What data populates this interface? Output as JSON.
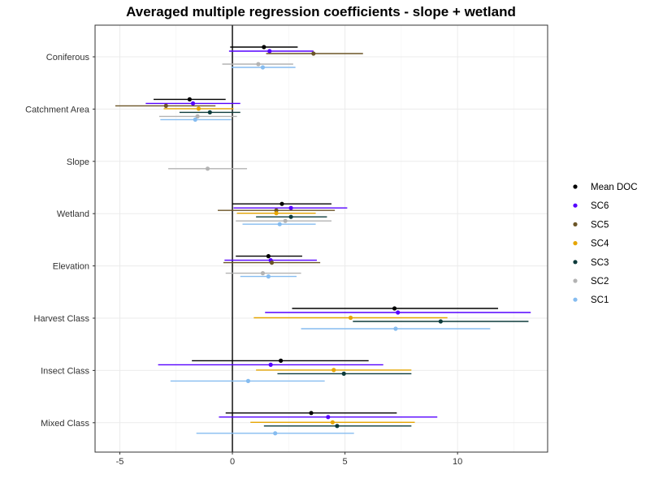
{
  "chart_data": {
    "type": "forest",
    "title": "Averaged multiple regression coefficients - slope + wetland",
    "xlabel": "",
    "ylabel": "",
    "xlim": [
      -6.1,
      14.0
    ],
    "x_ticks": [
      -5,
      0,
      5,
      10
    ],
    "x_tick_labels": [
      "-5",
      "0",
      "5",
      "10"
    ],
    "grid": true,
    "legend_position": "right",
    "categories": [
      "Coniferous",
      "Catchment Area",
      "Slope",
      "Wetland",
      "Elevation",
      "Harvest Class",
      "Insect Class",
      "Mixed Class"
    ],
    "series": [
      {
        "name": "Mean DOC",
        "color": "#000000",
        "points": [
          {
            "category": "Coniferous",
            "est": 1.4,
            "lo": -0.1,
            "hi": 2.9
          },
          {
            "category": "Catchment Area",
            "est": -1.9,
            "lo": -3.5,
            "hi": -0.3
          },
          {
            "category": "Wetland",
            "est": 2.2,
            "lo": 0.0,
            "hi": 4.4
          },
          {
            "category": "Elevation",
            "est": 1.6,
            "lo": 0.15,
            "hi": 3.1
          },
          {
            "category": "Harvest Class",
            "est": 7.2,
            "lo": 2.65,
            "hi": 11.8
          },
          {
            "category": "Insect Class",
            "est": 2.15,
            "lo": -1.8,
            "hi": 6.05
          },
          {
            "category": "Mixed Class",
            "est": 3.5,
            "lo": -0.3,
            "hi": 7.3
          }
        ]
      },
      {
        "name": "SC6",
        "color": "#5500ff",
        "points": [
          {
            "category": "Coniferous",
            "est": 1.65,
            "lo": -0.15,
            "hi": 3.6
          },
          {
            "category": "Catchment Area",
            "est": -1.75,
            "lo": -3.85,
            "hi": 0.35
          },
          {
            "category": "Wetland",
            "est": 2.6,
            "lo": 0.05,
            "hi": 5.1
          },
          {
            "category": "Elevation",
            "est": 1.7,
            "lo": -0.35,
            "hi": 3.75
          },
          {
            "category": "Harvest Class",
            "est": 7.35,
            "lo": 1.45,
            "hi": 13.25
          },
          {
            "category": "Insect Class",
            "est": 1.7,
            "lo": -3.3,
            "hi": 6.7
          },
          {
            "category": "Mixed Class",
            "est": 4.25,
            "lo": -0.6,
            "hi": 9.1
          }
        ]
      },
      {
        "name": "SC5",
        "color": "#6b5527",
        "points": [
          {
            "category": "Coniferous",
            "est": 3.6,
            "lo": 1.5,
            "hi": 5.8
          },
          {
            "category": "Catchment Area",
            "est": -2.95,
            "lo": -5.2,
            "hi": -0.75
          },
          {
            "category": "Wetland",
            "est": 1.95,
            "lo": -0.65,
            "hi": 4.55
          },
          {
            "category": "Elevation",
            "est": 1.75,
            "lo": -0.4,
            "hi": 3.9
          }
        ]
      },
      {
        "name": "SC4",
        "color": "#e6a500",
        "points": [
          {
            "category": "Catchment Area",
            "est": -1.5,
            "lo": -3.05,
            "hi": 0.05
          },
          {
            "category": "Wetland",
            "est": 1.95,
            "lo": 0.2,
            "hi": 3.7
          },
          {
            "category": "Harvest Class",
            "est": 5.25,
            "lo": 0.95,
            "hi": 9.55
          },
          {
            "category": "Insect Class",
            "est": 4.5,
            "lo": 1.05,
            "hi": 7.95
          },
          {
            "category": "Mixed Class",
            "est": 4.45,
            "lo": 0.8,
            "hi": 8.1
          }
        ]
      },
      {
        "name": "SC3",
        "color": "#0d3b3b",
        "points": [
          {
            "category": "Catchment Area",
            "est": -1.0,
            "lo": -2.35,
            "hi": 0.35
          },
          {
            "category": "Wetland",
            "est": 2.6,
            "lo": 1.05,
            "hi": 4.2
          },
          {
            "category": "Harvest Class",
            "est": 9.25,
            "lo": 5.35,
            "hi": 13.15
          },
          {
            "category": "Insect Class",
            "est": 4.95,
            "lo": 2.0,
            "hi": 7.95
          },
          {
            "category": "Mixed Class",
            "est": 4.65,
            "lo": 1.4,
            "hi": 7.95
          }
        ]
      },
      {
        "name": "SC2",
        "color": "#b3b3b3",
        "points": [
          {
            "category": "Coniferous",
            "est": 1.15,
            "lo": -0.45,
            "hi": 2.7
          },
          {
            "category": "Catchment Area",
            "est": -1.55,
            "lo": -3.25,
            "hi": 0.2
          },
          {
            "category": "Slope",
            "est": -1.1,
            "lo": -2.85,
            "hi": 0.65
          },
          {
            "category": "Wetland",
            "est": 2.35,
            "lo": 0.15,
            "hi": 4.4
          },
          {
            "category": "Elevation",
            "est": 1.35,
            "lo": -0.3,
            "hi": 3.05
          }
        ]
      },
      {
        "name": "SC1",
        "color": "#85bcf0",
        "points": [
          {
            "category": "Coniferous",
            "est": 1.35,
            "lo": -0.05,
            "hi": 2.8
          },
          {
            "category": "Catchment Area",
            "est": -1.65,
            "lo": -3.2,
            "hi": -0.05
          },
          {
            "category": "Wetland",
            "est": 2.1,
            "lo": 0.45,
            "hi": 3.7
          },
          {
            "category": "Elevation",
            "est": 1.6,
            "lo": 0.35,
            "hi": 2.85
          },
          {
            "category": "Harvest Class",
            "est": 7.25,
            "lo": 3.05,
            "hi": 11.45
          },
          {
            "category": "Insect Class",
            "est": 0.7,
            "lo": -2.75,
            "hi": 4.1
          },
          {
            "category": "Mixed Class",
            "est": 1.9,
            "lo": -1.6,
            "hi": 5.4
          }
        ]
      }
    ]
  }
}
